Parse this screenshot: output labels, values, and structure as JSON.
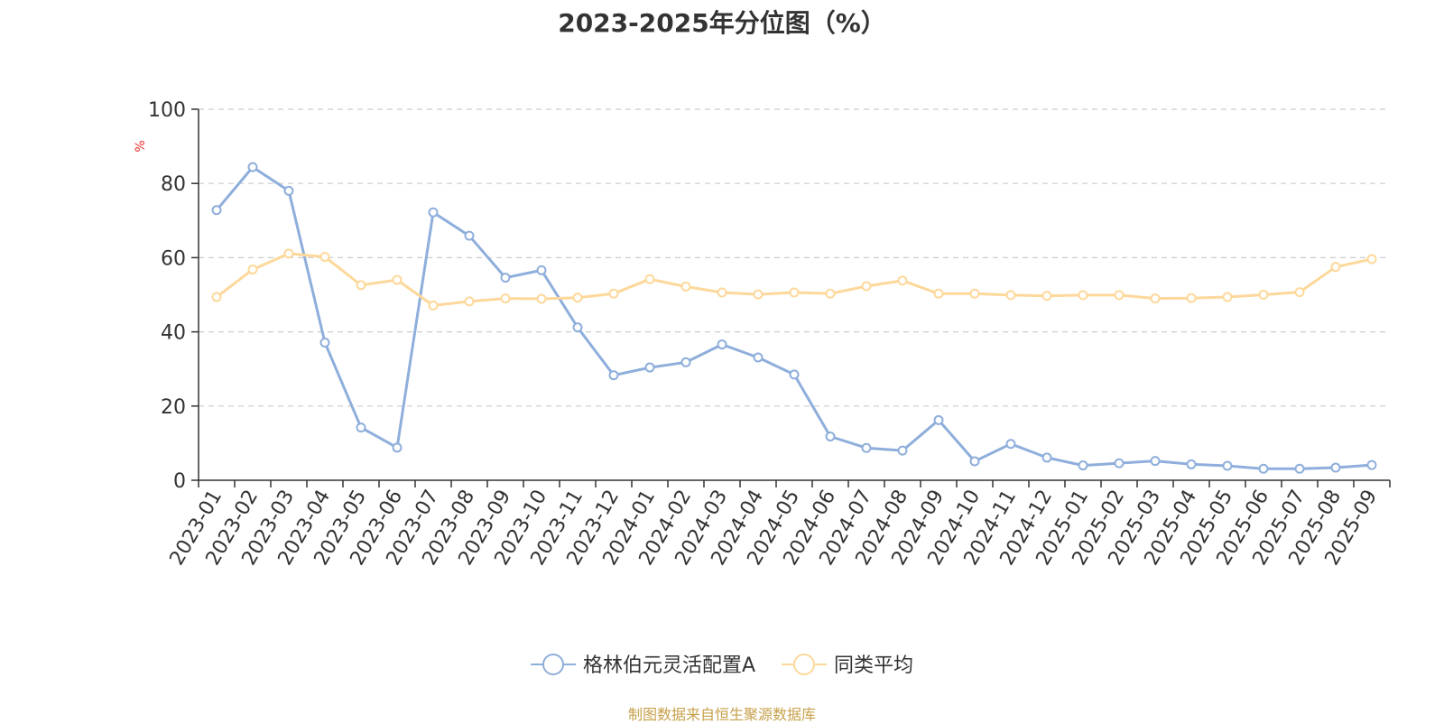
{
  "chart_data": {
    "type": "line",
    "title": "2023-2025年分位图（%）",
    "ylabel": "%",
    "ylim": [
      0,
      100
    ],
    "yticks": [
      0,
      20,
      40,
      60,
      80,
      100
    ],
    "grid": true,
    "legend_position": "bottom",
    "categories": [
      "2023-01",
      "2023-02",
      "2023-03",
      "2023-04",
      "2023-05",
      "2023-06",
      "2023-07",
      "2023-08",
      "2023-09",
      "2023-10",
      "2023-11",
      "2023-12",
      "2024-01",
      "2024-02",
      "2024-03",
      "2024-04",
      "2024-05",
      "2024-06",
      "2024-07",
      "2024-08",
      "2024-09",
      "2024-10",
      "2024-11",
      "2024-12",
      "2025-01",
      "2025-02",
      "2025-03",
      "2025-04",
      "2025-05",
      "2025-06",
      "2025-07",
      "2025-08",
      "2025-09"
    ],
    "series": [
      {
        "name": "格林伯元灵活配置A",
        "color": "#8eaedb",
        "values": [
          72.8,
          84.4,
          78.0,
          37.1,
          14.2,
          8.8,
          72.2,
          65.9,
          54.6,
          56.6,
          41.2,
          28.3,
          30.4,
          31.8,
          36.6,
          33.1,
          28.5,
          11.8,
          8.7,
          8.0,
          16.2,
          5.1,
          9.8,
          6.1,
          4.0,
          4.6,
          5.2,
          4.3,
          3.9,
          3.1,
          3.1,
          3.4,
          4.1
        ]
      },
      {
        "name": "同类平均",
        "color": "#fdd89a",
        "values": [
          49.4,
          56.8,
          61.1,
          60.2,
          52.6,
          54.0,
          47.1,
          48.2,
          49.0,
          48.9,
          49.2,
          50.3,
          54.2,
          52.2,
          50.6,
          50.1,
          50.6,
          50.3,
          52.3,
          53.8,
          50.3,
          50.3,
          49.9,
          49.7,
          49.9,
          49.9,
          49.0,
          49.1,
          49.4,
          50.0,
          50.7,
          57.5,
          59.6
        ]
      }
    ]
  },
  "footer": {
    "source": "制图数据来自恒生聚源数据库"
  }
}
